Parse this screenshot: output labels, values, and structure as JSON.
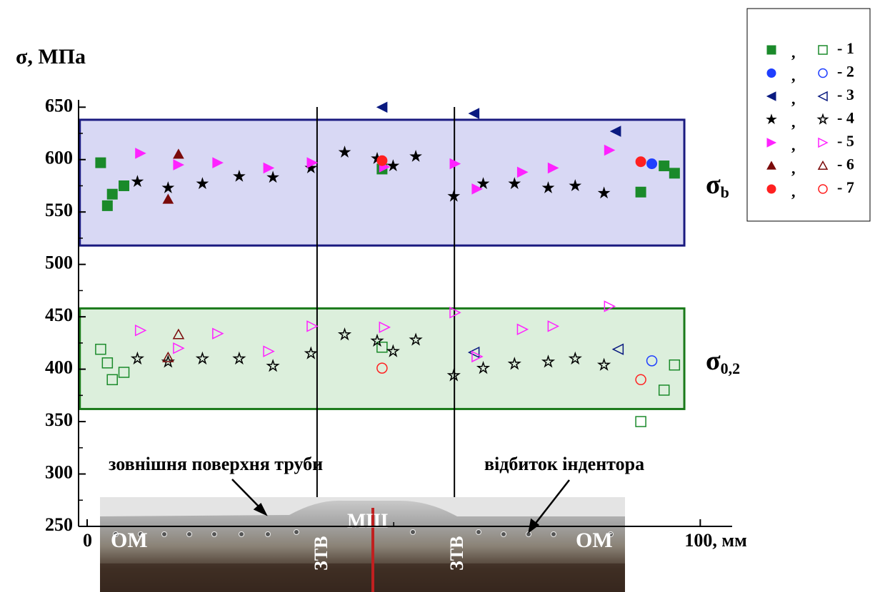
{
  "chart_data": {
    "type": "scatter",
    "ylabel": "σ, МПа",
    "xlim": [
      -1.4,
      105.2
    ],
    "ylim": [
      250,
      657
    ],
    "xticks": [
      0,
      {
        "value": 100,
        "label": "100, мм"
      }
    ],
    "yticks": [
      250,
      300,
      350,
      400,
      450,
      500,
      550,
      600,
      650
    ],
    "bands": [
      {
        "label": "σ",
        "sub": "b",
        "x": [
          -1.2,
          97.4
        ],
        "ylim": [
          518,
          638
        ],
        "color": "#1a1a80",
        "fill": "#d8d8f4"
      },
      {
        "label": "σ",
        "sub": "0,2",
        "x": [
          -1.2,
          97.4
        ],
        "ylim": [
          362,
          458
        ],
        "color": "#1a7a1a",
        "fill": "#dcefdc"
      }
    ],
    "vlines": [
      37.5,
      59.9
    ],
    "legend_separator": ",",
    "series": [
      {
        "name": "- 1",
        "marker": "square",
        "color": "#1a8a2a",
        "filled": {
          "x": [
            2.2,
            3.3,
            4.1,
            6.0,
            48.1,
            90.3,
            94.1,
            95.8
          ],
          "values": [
            597,
            556,
            567,
            575,
            591,
            569,
            594,
            587
          ]
        },
        "open": {
          "x": [
            2.2,
            3.3,
            4.1,
            6.0,
            48.1,
            90.3,
            94.1,
            95.8
          ],
          "values": [
            419,
            406,
            390,
            397,
            421,
            350,
            380,
            404
          ]
        }
      },
      {
        "name": "- 2",
        "marker": "circle",
        "color": "#1f3fff",
        "filled": {
          "x": [
            92.1
          ],
          "values": [
            596
          ]
        },
        "open": {
          "x": [
            92.1
          ],
          "values": [
            408
          ]
        }
      },
      {
        "name": "- 3",
        "marker": "tri-left",
        "color": "#0a1a80",
        "filled": {
          "x": [
            48.1,
            63.1,
            86.2
          ],
          "values": [
            650,
            644,
            627
          ]
        },
        "open": {
          "x": [
            63.1,
            86.6
          ],
          "values": [
            416,
            419
          ]
        }
      },
      {
        "name": "- 4",
        "marker": "star",
        "color": "#000000",
        "filled": {
          "x": [
            8.2,
            13.2,
            18.8,
            24.8,
            30.3,
            36.5,
            42.0,
            47.3,
            49.9,
            53.6,
            59.8,
            64.6,
            69.7,
            75.2,
            79.6,
            84.3
          ],
          "values": [
            579,
            573,
            577,
            584,
            583,
            592,
            607,
            601,
            594,
            603,
            565,
            577,
            577,
            573,
            575,
            568
          ]
        },
        "open": {
          "x": [
            8.2,
            13.2,
            18.8,
            24.8,
            30.3,
            36.5,
            42.0,
            47.3,
            49.9,
            53.6,
            59.8,
            64.6,
            69.7,
            75.2,
            79.6,
            84.3
          ],
          "values": [
            410,
            407,
            410,
            410,
            403,
            415,
            433,
            427,
            417,
            428,
            394,
            401,
            405,
            407,
            410,
            404
          ]
        }
      },
      {
        "name": "- 5",
        "marker": "tri-right",
        "color": "#ff22ff",
        "filled": {
          "x": [
            8.7,
            14.9,
            21.3,
            29.6,
            36.7,
            48.5,
            60.0,
            63.6,
            71.0,
            76.0,
            85.2
          ],
          "values": [
            606,
            595,
            597,
            592,
            597,
            593,
            596,
            572,
            588,
            592,
            609
          ]
        },
        "open": {
          "x": [
            8.7,
            14.9,
            21.3,
            29.6,
            36.7,
            48.5,
            60.0,
            63.6,
            71.0,
            76.0,
            85.2
          ],
          "values": [
            437,
            420,
            434,
            417,
            441,
            440,
            454,
            412,
            438,
            441,
            460
          ]
        }
      },
      {
        "name": "- 6",
        "marker": "tri-up",
        "color": "#7a0a0a",
        "filled": {
          "x": [
            13.2,
            14.9
          ],
          "values": [
            562,
            605
          ]
        },
        "open": {
          "x": [
            13.2,
            14.9
          ],
          "values": [
            411,
            433
          ]
        }
      },
      {
        "name": "- 7",
        "marker": "circle",
        "color": "#ff2020",
        "filled": {
          "x": [
            48.1,
            90.3
          ],
          "values": [
            599,
            598
          ]
        },
        "open": {
          "x": [
            48.1,
            90.3
          ],
          "values": [
            401,
            390
          ]
        }
      }
    ],
    "annotations": {
      "outer_surface": "зовнішня поверхня труби",
      "indent": "відбиток  індентора",
      "zones": [
        "ОМ",
        "ЗТВ",
        "МШ",
        "ЗТВ",
        "ОМ"
      ]
    }
  }
}
